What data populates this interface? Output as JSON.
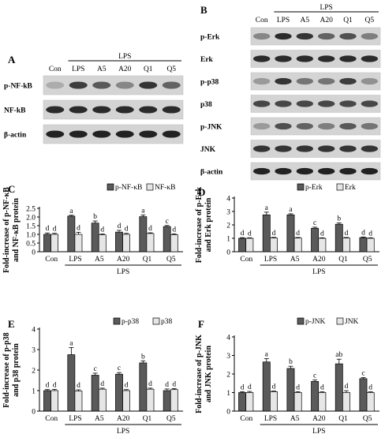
{
  "panels": {
    "A": {
      "letter": "A",
      "group_label": "LPS",
      "lanes": [
        "Con",
        "LPS",
        "A5",
        "A20",
        "Q1",
        "Q5"
      ],
      "rows": [
        "p-NF-kB",
        "NF-kB",
        "β-actin"
      ],
      "intensity": [
        [
          0.15,
          0.75,
          0.6,
          0.35,
          0.8,
          0.55
        ],
        [
          0.85,
          0.85,
          0.85,
          0.85,
          0.85,
          0.85
        ],
        [
          0.9,
          0.9,
          0.9,
          0.9,
          0.9,
          0.9
        ]
      ]
    },
    "B": {
      "letter": "B",
      "group_label": "LPS",
      "lanes": [
        "Con",
        "LPS",
        "A5",
        "A20",
        "Q1",
        "Q5"
      ],
      "rows": [
        "p-Erk",
        "Erk",
        "p-p38",
        "p38",
        "p-JNK",
        "JNK",
        "β-actin"
      ],
      "intensity": [
        [
          0.35,
          0.85,
          0.8,
          0.55,
          0.65,
          0.4
        ],
        [
          0.85,
          0.85,
          0.85,
          0.85,
          0.85,
          0.85
        ],
        [
          0.25,
          0.8,
          0.45,
          0.45,
          0.75,
          0.3
        ],
        [
          0.7,
          0.7,
          0.7,
          0.7,
          0.7,
          0.7
        ],
        [
          0.25,
          0.65,
          0.55,
          0.4,
          0.6,
          0.45
        ],
        [
          0.8,
          0.8,
          0.8,
          0.8,
          0.8,
          0.8
        ],
        [
          0.9,
          0.9,
          0.9,
          0.9,
          0.9,
          0.9
        ]
      ]
    }
  },
  "chart_data": [
    {
      "panel": "C",
      "type": "bar",
      "categories": [
        "Con",
        "LPS",
        "A5",
        "A20",
        "Q1",
        "Q5"
      ],
      "group_label": "LPS",
      "ylabel_lines": [
        "Fold-increase of p-NF-κB",
        "and NF-κB protein"
      ],
      "ylim": [
        0,
        2.5
      ],
      "ticks": [
        "0",
        "0.5",
        "1.0",
        "1.5",
        "2.0",
        "2.5"
      ],
      "tick_values": [
        0,
        0.5,
        1.0,
        1.5,
        2.0,
        2.5
      ],
      "series": [
        {
          "name": "p-NF-κB",
          "color": "#5a5a5a",
          "values": [
            1.0,
            2.05,
            1.65,
            1.13,
            2.02,
            1.45
          ],
          "errors": [
            0.08,
            0.05,
            0.12,
            0.1,
            0.1,
            0.06
          ],
          "letters": [
            "d",
            "a",
            "b",
            "d",
            "a",
            "c"
          ]
        },
        {
          "name": "NF-κB",
          "color": "#e6e6e6",
          "values": [
            1.0,
            1.0,
            0.97,
            1.0,
            1.05,
            0.98
          ],
          "errors": [
            0.06,
            0.12,
            0.05,
            0.06,
            0.04,
            0.05
          ],
          "letters": [
            "d",
            "d",
            "d",
            "d",
            "d",
            "d"
          ]
        }
      ]
    },
    {
      "panel": "D",
      "type": "bar",
      "categories": [
        "Con",
        "LPS",
        "A5",
        "A20",
        "Q1",
        "Q5"
      ],
      "group_label": "LPS",
      "ylabel_lines": [
        "Fold-increase of p-Erk",
        "and Erk protein"
      ],
      "ylim": [
        0,
        4
      ],
      "ticks": [
        "0",
        "1",
        "2",
        "3",
        "4"
      ],
      "tick_values": [
        0,
        1,
        2,
        3,
        4
      ],
      "series": [
        {
          "name": "p-Erk",
          "color": "#5a5a5a",
          "values": [
            1.0,
            2.75,
            2.75,
            1.75,
            2.05,
            1.05
          ],
          "errors": [
            0.05,
            0.2,
            0.08,
            0.08,
            0.1,
            0.05
          ],
          "letters": [
            "d",
            "a",
            "a",
            "c",
            "b",
            "d"
          ]
        },
        {
          "name": "Erk",
          "color": "#e6e6e6",
          "values": [
            1.0,
            1.02,
            1.02,
            1.0,
            1.02,
            1.0
          ],
          "errors": [
            0.04,
            0.05,
            0.04,
            0.04,
            0.04,
            0.04
          ],
          "letters": [
            "d",
            "d",
            "d",
            "d",
            "d",
            "d"
          ]
        }
      ]
    },
    {
      "panel": "E",
      "type": "bar",
      "categories": [
        "Con",
        "LPS",
        "A5",
        "A20",
        "Q1",
        "Q5"
      ],
      "group_label": "LPS",
      "ylabel_lines": [
        "Fold-increase of p-p38",
        "and p38 protein"
      ],
      "ylim": [
        0,
        4
      ],
      "ticks": [
        "0",
        "1",
        "2",
        "3",
        "4"
      ],
      "tick_values": [
        0,
        1,
        2,
        3,
        4
      ],
      "series": [
        {
          "name": "p-p38",
          "color": "#5a5a5a",
          "values": [
            1.0,
            2.75,
            1.75,
            1.8,
            2.35,
            1.0
          ],
          "errors": [
            0.05,
            0.35,
            0.1,
            0.08,
            0.1,
            0.08
          ],
          "letters": [
            "d",
            "a",
            "c",
            "c",
            "b",
            "d"
          ]
        },
        {
          "name": "p38",
          "color": "#e6e6e6",
          "values": [
            1.0,
            0.98,
            1.07,
            1.0,
            1.07,
            1.05
          ],
          "errors": [
            0.06,
            0.06,
            0.05,
            0.05,
            0.05,
            0.05
          ],
          "letters": [
            "d",
            "d",
            "d",
            "d",
            "d",
            "d"
          ]
        }
      ]
    },
    {
      "panel": "F",
      "type": "bar",
      "categories": [
        "Con",
        "LPS",
        "A5",
        "A20",
        "Q1",
        "Q5"
      ],
      "group_label": "LPS",
      "ylabel_lines": [
        "Fold-increase of p-JNK",
        "and JNK protein"
      ],
      "ylim": [
        0,
        4
      ],
      "ticks": [
        "0",
        "1",
        "2",
        "3",
        "4"
      ],
      "tick_values": [
        0,
        1,
        2,
        3,
        4
      ],
      "series": [
        {
          "name": "p-JNK",
          "color": "#5a5a5a",
          "values": [
            1.0,
            2.65,
            2.3,
            1.6,
            2.55,
            1.75
          ],
          "errors": [
            0.05,
            0.18,
            0.12,
            0.08,
            0.25,
            0.06
          ],
          "letters": [
            "d",
            "a",
            "b",
            "c",
            "ab",
            "c"
          ]
        },
        {
          "name": "JNK",
          "color": "#e6e6e6",
          "values": [
            1.0,
            1.05,
            1.0,
            1.0,
            1.0,
            1.0
          ],
          "errors": [
            0.06,
            0.04,
            0.05,
            0.04,
            0.1,
            0.04
          ],
          "letters": [
            "d",
            "d",
            "d",
            "d",
            "d",
            "d"
          ]
        }
      ]
    }
  ]
}
